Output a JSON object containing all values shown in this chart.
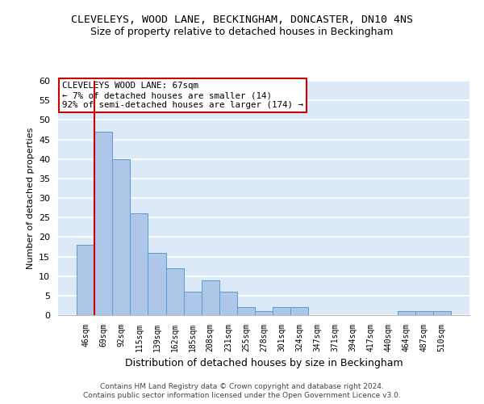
{
  "title1": "CLEVELEYS, WOOD LANE, BECKINGHAM, DONCASTER, DN10 4NS",
  "title2": "Size of property relative to detached houses in Beckingham",
  "xlabel": "Distribution of detached houses by size in Beckingham",
  "ylabel": "Number of detached properties",
  "categories": [
    "46sqm",
    "69sqm",
    "92sqm",
    "115sqm",
    "139sqm",
    "162sqm",
    "185sqm",
    "208sqm",
    "231sqm",
    "255sqm",
    "278sqm",
    "301sqm",
    "324sqm",
    "347sqm",
    "371sqm",
    "394sqm",
    "417sqm",
    "440sqm",
    "464sqm",
    "487sqm",
    "510sqm"
  ],
  "values": [
    18,
    47,
    40,
    26,
    16,
    12,
    6,
    9,
    6,
    2,
    1,
    2,
    2,
    0,
    0,
    0,
    0,
    0,
    1,
    1,
    1
  ],
  "bar_color": "#aec6e8",
  "bar_edge_color": "#5b9bd5",
  "background_color": "#dce9f7",
  "grid_color": "#ffffff",
  "ylim": [
    0,
    60
  ],
  "yticks": [
    0,
    5,
    10,
    15,
    20,
    25,
    30,
    35,
    40,
    45,
    50,
    55,
    60
  ],
  "subject_line_color": "#cc0000",
  "annotation_title": "CLEVELEYS WOOD LANE: 67sqm",
  "annotation_line1": "← 7% of detached houses are smaller (14)",
  "annotation_line2": "92% of semi-detached houses are larger (174) →",
  "annotation_box_color": "#ffffff",
  "annotation_box_edge": "#cc0000",
  "footer1": "Contains HM Land Registry data © Crown copyright and database right 2024.",
  "footer2": "Contains public sector information licensed under the Open Government Licence v3.0."
}
